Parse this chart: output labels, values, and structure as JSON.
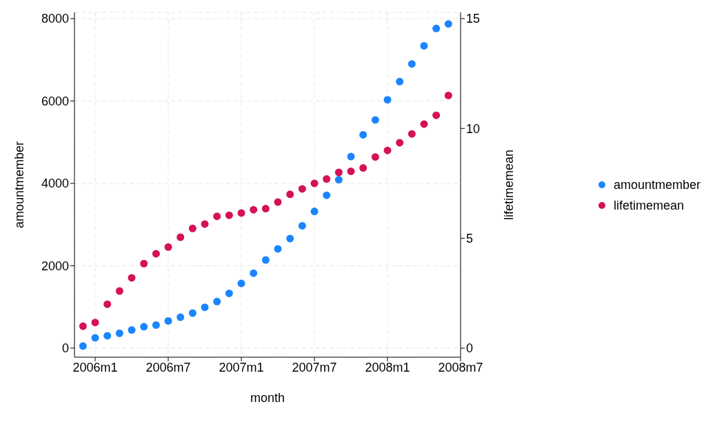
{
  "chart_data": {
    "type": "scatter",
    "xlabel": "month",
    "ylabel": "amountmember",
    "y2label": "lifetimemean",
    "x": [
      "2005-12",
      "2006-01",
      "2006-02",
      "2006-03",
      "2006-04",
      "2006-05",
      "2006-06",
      "2006-07",
      "2006-08",
      "2006-09",
      "2006-10",
      "2006-11",
      "2006-12",
      "2007-01",
      "2007-02",
      "2007-03",
      "2007-04",
      "2007-05",
      "2007-06",
      "2007-07",
      "2007-08",
      "2007-09",
      "2007-10",
      "2007-11",
      "2007-12",
      "2008-01",
      "2008-02",
      "2008-03",
      "2008-04",
      "2008-05",
      "2008-06"
    ],
    "series": [
      {
        "name": "amountmember",
        "color": "#1a85ff",
        "values": [
          50,
          250,
          300,
          360,
          440,
          520,
          560,
          660,
          750,
          850,
          990,
          1130,
          1330,
          1570,
          1820,
          2140,
          2410,
          2660,
          2970,
          3320,
          3710,
          4090,
          4650,
          5180,
          5540,
          6030,
          6470,
          6900,
          7340,
          7760,
          7870
        ]
      },
      {
        "name": "lifetimemean",
        "color": "#d41159",
        "axis": "y2",
        "values": [
          1.0,
          1.17,
          2.0,
          2.6,
          3.2,
          3.85,
          4.3,
          4.6,
          5.05,
          5.45,
          5.65,
          6.0,
          6.05,
          6.15,
          6.3,
          6.35,
          6.65,
          7.0,
          7.25,
          7.5,
          7.7,
          8.0,
          8.05,
          8.2,
          8.7,
          9.0,
          9.35,
          9.75,
          10.2,
          10.6,
          11.5
        ]
      }
    ],
    "xlim": [
      "2005-11-10",
      "2008-07"
    ],
    "xticks": [
      {
        "value": "2006-01",
        "label": "2006m1"
      },
      {
        "value": "2006-07",
        "label": "2006m7"
      },
      {
        "value": "2007-01",
        "label": "2007m1"
      },
      {
        "value": "2007-07",
        "label": "2007m7"
      },
      {
        "value": "2008-01",
        "label": "2008m1"
      },
      {
        "value": "2008-07",
        "label": "2008m7"
      }
    ],
    "ylim": [
      -220,
      8150
    ],
    "yticks": [
      0,
      2000,
      4000,
      6000,
      8000
    ],
    "y2lim": [
      -0.41,
      15.28
    ],
    "y2ticks": [
      0,
      5,
      10,
      15
    ],
    "grid": true,
    "legend": "right",
    "marker": "circle"
  }
}
